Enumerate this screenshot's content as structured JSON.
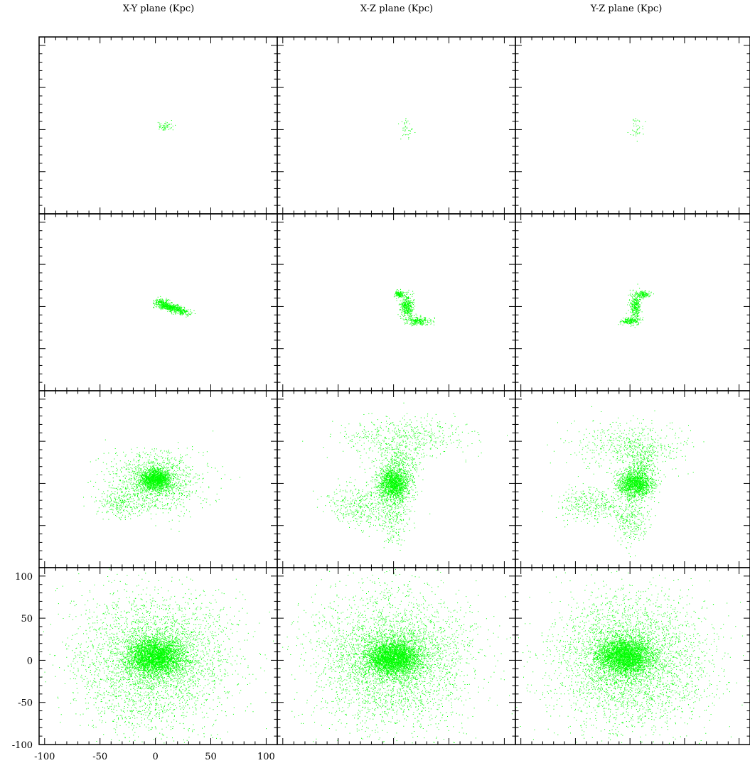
{
  "chart_data": {
    "type": "scatter",
    "layout": "4 rows x 3 columns grid of projection panels",
    "column_titles": [
      "X-Y plane (Kpc)",
      "X-Z plane (Kpc)",
      "Y-Z plane (Kpc)"
    ],
    "xlim": [
      -105,
      110
    ],
    "ylim": [
      -100,
      110
    ],
    "x_ticks": [
      -100,
      -50,
      0,
      50,
      100
    ],
    "y_ticks": [
      -100,
      -50,
      0,
      50,
      100
    ],
    "x_tick_labels": [
      "-100",
      "-50",
      "0",
      "50",
      "100"
    ],
    "y_tick_labels": [
      "-100",
      "-50",
      "0",
      "50",
      "100"
    ],
    "grid": false,
    "point_color": "#00ff00",
    "axis_color": "#000000",
    "panels": [
      {
        "row": 0,
        "col": 0,
        "clumps": [
          {
            "cx": 8,
            "cy": 4,
            "sx": 4,
            "sy": 3,
            "n": 60
          }
        ]
      },
      {
        "row": 0,
        "col": 1,
        "clumps": [
          {
            "cx": 12,
            "cy": 2,
            "sx": 3,
            "sy": 6,
            "n": 40
          }
        ]
      },
      {
        "row": 0,
        "col": 2,
        "clumps": [
          {
            "cx": 5,
            "cy": 2,
            "sx": 3,
            "sy": 6,
            "n": 40
          }
        ]
      },
      {
        "row": 1,
        "col": 0,
        "clumps": [
          {
            "cx": 12,
            "cy": 0,
            "sx": 6,
            "sy": 2.2,
            "n": 500,
            "rot": -15
          },
          {
            "cx": 24,
            "cy": -6,
            "sx": 4,
            "sy": 2,
            "n": 150,
            "rot": -15
          },
          {
            "cx": 5,
            "cy": 6,
            "sx": 3,
            "sy": 2,
            "n": 120
          }
        ]
      },
      {
        "row": 1,
        "col": 1,
        "clumps": [
          {
            "cx": 5,
            "cy": 15,
            "sx": 2,
            "sy": 2,
            "n": 150
          },
          {
            "cx": 12,
            "cy": 0,
            "sx": 3,
            "sy": 7,
            "n": 400
          },
          {
            "cx": 22,
            "cy": -17,
            "sx": 6,
            "sy": 2.5,
            "n": 250
          }
        ]
      },
      {
        "row": 1,
        "col": 2,
        "clumps": [
          {
            "cx": 12,
            "cy": 15,
            "sx": 3,
            "sy": 2,
            "n": 150
          },
          {
            "cx": 5,
            "cy": 0,
            "sx": 2.5,
            "sy": 8,
            "n": 350
          },
          {
            "cx": 0,
            "cy": -17,
            "sx": 4,
            "sy": 2,
            "n": 200
          }
        ]
      },
      {
        "row": 2,
        "col": 0,
        "clumps": [
          {
            "cx": 0,
            "cy": 5,
            "sx": 7,
            "sy": 6,
            "n": 1600
          },
          {
            "cx": 0,
            "cy": 3,
            "sx": 20,
            "sy": 18,
            "n": 1200
          },
          {
            "cx": -30,
            "cy": -25,
            "sx": 12,
            "sy": 8,
            "n": 250
          }
        ]
      },
      {
        "row": 2,
        "col": 1,
        "clumps": [
          {
            "cx": 0,
            "cy": 0,
            "sx": 7,
            "sy": 10,
            "n": 1600
          },
          {
            "cx": 10,
            "cy": 55,
            "sx": 30,
            "sy": 12,
            "n": 500
          },
          {
            "cx": 5,
            "cy": 25,
            "sx": 10,
            "sy": 12,
            "n": 350
          },
          {
            "cx": -30,
            "cy": -25,
            "sx": 15,
            "sy": 12,
            "n": 400
          },
          {
            "cx": 0,
            "cy": -35,
            "sx": 8,
            "sy": 20,
            "n": 300
          }
        ]
      },
      {
        "row": 2,
        "col": 2,
        "clumps": [
          {
            "cx": 5,
            "cy": 0,
            "sx": 8,
            "sy": 8,
            "n": 1500,
            "rot": 30
          },
          {
            "cx": 0,
            "cy": 45,
            "sx": 25,
            "sy": 15,
            "n": 500
          },
          {
            "cx": 10,
            "cy": 25,
            "sx": 8,
            "sy": 12,
            "n": 300
          },
          {
            "cx": -35,
            "cy": -25,
            "sx": 15,
            "sy": 10,
            "n": 350
          },
          {
            "cx": 0,
            "cy": -40,
            "sx": 8,
            "sy": 15,
            "n": 300
          }
        ]
      },
      {
        "row": 3,
        "col": 0,
        "clumps": [
          {
            "cx": 0,
            "cy": 5,
            "sx": 13,
            "sy": 11,
            "n": 3500
          },
          {
            "cx": 0,
            "cy": 0,
            "sx": 35,
            "sy": 40,
            "n": 3500
          }
        ]
      },
      {
        "row": 3,
        "col": 1,
        "clumps": [
          {
            "cx": 0,
            "cy": 3,
            "sx": 13,
            "sy": 11,
            "n": 3500
          },
          {
            "cx": 0,
            "cy": 0,
            "sx": 35,
            "sy": 40,
            "n": 3500
          }
        ]
      },
      {
        "row": 3,
        "col": 2,
        "clumps": [
          {
            "cx": -5,
            "cy": 5,
            "sx": 13,
            "sy": 11,
            "n": 3500
          },
          {
            "cx": 0,
            "cy": 0,
            "sx": 35,
            "sy": 40,
            "n": 3500
          }
        ]
      }
    ]
  }
}
